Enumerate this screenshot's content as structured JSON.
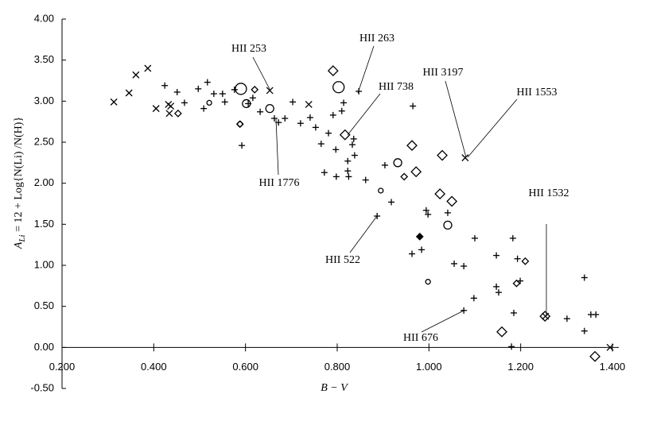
{
  "chart_data": {
    "type": "scatter",
    "xlabel": "B − V",
    "ylabel": "A",
    "ylabel_sub": "Li",
    "ylabel_rest": " = 12 + Log{N(Li) /N(H)}",
    "xlim": [
      0.2,
      1.4
    ],
    "ylim": [
      -0.5,
      4.0
    ],
    "xticks": [
      {
        "value": 0.2,
        "label": "0.200"
      },
      {
        "value": 0.4,
        "label": "0.400"
      },
      {
        "value": 0.6,
        "label": "0.600"
      },
      {
        "value": 0.8,
        "label": "0.800"
      },
      {
        "value": 1.0,
        "label": "1.000"
      },
      {
        "value": 1.2,
        "label": "1.200"
      },
      {
        "value": 1.4,
        "label": "1.400"
      }
    ],
    "yticks": [
      {
        "value": -0.5,
        "label": "-0.50"
      },
      {
        "value": 0.0,
        "label": "0.00"
      },
      {
        "value": 0.5,
        "label": "0.50"
      },
      {
        "value": 1.0,
        "label": "1.00"
      },
      {
        "value": 1.5,
        "label": "1.50"
      },
      {
        "value": 2.0,
        "label": "2.00"
      },
      {
        "value": 2.5,
        "label": "2.50"
      },
      {
        "value": 3.0,
        "label": "3.00"
      },
      {
        "value": 3.5,
        "label": "3.50"
      },
      {
        "value": 4.0,
        "label": "4.00"
      }
    ],
    "color": "#000000",
    "series": [
      {
        "marker": "cross",
        "size": 4,
        "x": [
          0.313,
          0.346,
          0.361,
          0.387,
          0.405,
          0.432,
          0.437,
          0.434,
          0.653,
          0.738,
          1.079,
          1.254,
          1.395
        ],
        "values": [
          2.99,
          3.1,
          3.32,
          3.4,
          2.91,
          2.96,
          2.94,
          2.85,
          3.13,
          2.96,
          2.31,
          0.38,
          0.0
        ]
      },
      {
        "marker": "plus",
        "size": 4,
        "x": [
          0.424,
          0.451,
          0.467,
          0.497,
          0.509,
          0.517,
          0.531,
          0.55,
          0.555,
          0.576,
          0.592,
          0.606,
          0.616,
          0.632,
          0.663,
          0.672,
          0.686,
          0.703,
          0.72,
          0.741,
          0.753,
          0.765,
          0.772,
          0.781,
          0.791,
          0.797,
          0.798,
          0.81,
          0.814,
          0.823,
          0.823,
          0.825,
          0.833,
          0.836,
          0.838,
          0.847,
          0.862,
          0.887,
          0.904,
          0.918,
          0.963,
          0.984,
          0.965,
          0.994,
          0.998,
          1.041,
          1.055,
          1.076,
          1.098,
          1.1,
          1.076,
          1.147,
          1.147,
          1.152,
          1.183,
          1.185,
          1.193,
          1.199,
          1.18,
          1.301,
          1.339,
          1.339,
          1.353,
          1.364
        ],
        "values": [
          3.19,
          3.11,
          2.98,
          3.15,
          2.91,
          3.23,
          3.09,
          3.09,
          2.99,
          3.14,
          2.46,
          2.97,
          3.04,
          2.87,
          2.79,
          2.74,
          2.79,
          2.99,
          2.73,
          2.8,
          2.68,
          2.48,
          2.13,
          2.61,
          2.83,
          2.41,
          2.08,
          2.88,
          2.98,
          2.27,
          2.15,
          2.08,
          2.47,
          2.54,
          2.34,
          3.12,
          2.04,
          1.6,
          2.22,
          1.77,
          1.14,
          1.19,
          2.94,
          1.67,
          1.62,
          1.64,
          1.02,
          0.45,
          0.6,
          1.33,
          0.99,
          1.12,
          0.74,
          0.67,
          1.33,
          0.42,
          1.08,
          0.81,
          0.01,
          0.35,
          0.85,
          0.2,
          0.4,
          0.4
        ]
      },
      {
        "marker": "diamond",
        "size": 4,
        "x": [
          0.453,
          0.588,
          0.62,
          0.946,
          1.191,
          1.21
        ],
        "values": [
          2.85,
          2.72,
          3.14,
          2.08,
          0.78,
          1.05
        ]
      },
      {
        "marker": "diamond",
        "size": 6,
        "x": [
          0.791,
          0.817,
          0.963,
          0.972,
          1.029,
          1.024,
          1.05,
          1.159,
          1.253,
          1.362
        ],
        "values": [
          3.37,
          2.59,
          2.46,
          2.14,
          2.34,
          1.87,
          1.78,
          0.19,
          0.38,
          -0.11
        ]
      },
      {
        "marker": "circle",
        "size": 3,
        "x": [
          0.895,
          0.998,
          0.521,
          0.588
        ],
        "values": [
          1.91,
          0.8,
          2.98,
          2.72
        ]
      },
      {
        "marker": "circle",
        "size": 5,
        "x": [
          0.653,
          0.932,
          1.041,
          0.602
        ],
        "values": [
          2.91,
          2.25,
          1.49,
          2.97
        ]
      },
      {
        "marker": "circle",
        "size": 7,
        "x": [
          0.59,
          0.803
        ],
        "values": [
          3.15,
          3.17
        ]
      },
      {
        "marker": "filled-diamond",
        "size": 4,
        "x": [
          0.98
        ],
        "values": [
          1.35
        ]
      }
    ],
    "annotations": [
      "HII 253",
      "HII 263",
      "HII 738",
      "HII 3197",
      "HII 1553",
      "HII 1776",
      "HII 1532",
      "HII 522",
      "HII 676"
    ]
  }
}
